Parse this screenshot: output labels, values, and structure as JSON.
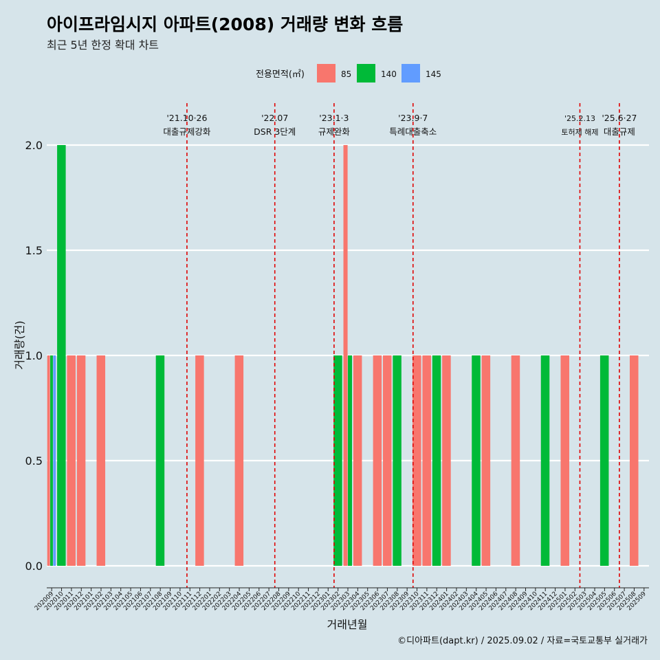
{
  "chart_data": {
    "type": "bar",
    "title": "아이프라임시지 아파트(2008) 거래량 변화 흐름",
    "subtitle": "최근 5년 한정 확대 차트",
    "xlabel": "거래년월",
    "ylabel": "거래량(건)",
    "caption": "©디아파트(dapt.kr) / 2025.09.02 / 자료=국토교통부 실거래가",
    "legend_title": "전용면적(㎡)",
    "ylim": [
      0,
      2
    ],
    "y_ticks": [
      "0.0",
      "0.5",
      "1.0",
      "1.5",
      "2.0"
    ],
    "categories": [
      "202009",
      "202010",
      "202011",
      "202012",
      "202101",
      "202102",
      "202103",
      "202104",
      "202105",
      "202106",
      "202107",
      "202108",
      "202109",
      "202110",
      "202111",
      "202112",
      "202201",
      "202202",
      "202203",
      "202204",
      "202205",
      "202206",
      "202207",
      "202208",
      "202209",
      "202210",
      "202211",
      "202212",
      "202301",
      "202302",
      "202303",
      "202304",
      "202305",
      "202306",
      "202307",
      "202308",
      "202309",
      "202310",
      "202311",
      "202312",
      "202401",
      "202402",
      "202403",
      "202404",
      "202405",
      "202406",
      "202407",
      "202408",
      "202409",
      "202410",
      "202411",
      "202412",
      "202501",
      "202502",
      "202503",
      "202504",
      "202505",
      "202506",
      "202507",
      "202508",
      "202509"
    ],
    "series": [
      {
        "name": "85",
        "color": "#f8766d",
        "values": [
          1,
          0,
          1,
          1,
          0,
          1,
          0,
          0,
          0,
          0,
          0,
          0,
          0,
          0,
          0,
          1,
          0,
          0,
          0,
          1,
          0,
          0,
          0,
          0,
          0,
          0,
          0,
          0,
          0,
          0,
          2,
          1,
          0,
          1,
          1,
          0,
          0,
          1,
          1,
          0,
          1,
          0,
          0,
          0,
          1,
          0,
          0,
          1,
          0,
          0,
          0,
          0,
          1,
          0,
          0,
          0,
          0,
          0,
          0,
          1,
          0
        ]
      },
      {
        "name": "140",
        "color": "#00ba38",
        "values": [
          1,
          2,
          0,
          0,
          0,
          0,
          0,
          0,
          0,
          0,
          0,
          1,
          0,
          0,
          0,
          0,
          0,
          0,
          0,
          0,
          0,
          0,
          0,
          0,
          0,
          0,
          0,
          0,
          0,
          1,
          1,
          0,
          0,
          0,
          0,
          1,
          0,
          0,
          0,
          1,
          0,
          0,
          0,
          1,
          0,
          0,
          0,
          0,
          0,
          0,
          1,
          0,
          0,
          0,
          0,
          0,
          1,
          0,
          0,
          0,
          0
        ]
      },
      {
        "name": "145",
        "color": "#619cff",
        "values": [
          1,
          0,
          0,
          0,
          0,
          0,
          0,
          0,
          0,
          0,
          0,
          0,
          0,
          0,
          0,
          0,
          0,
          0,
          0,
          0,
          0,
          0,
          0,
          0,
          0,
          0,
          0,
          0,
          0,
          0,
          0,
          0,
          0,
          0,
          0,
          0,
          0,
          0,
          0,
          0,
          0,
          0,
          0,
          0,
          0,
          0,
          0,
          0,
          0,
          0,
          0,
          0,
          0,
          0,
          0,
          0,
          0,
          0,
          0,
          0,
          0
        ]
      }
    ],
    "events": [
      {
        "date": "'21.10·26",
        "label": "대출규제강화",
        "position": 13.7
      },
      {
        "date": "'22.07",
        "label": "DSR 3단계",
        "position": 22.6
      },
      {
        "date": "'23.1·3",
        "label": "규제완화",
        "position": 28.6
      },
      {
        "date": "'23.9·7",
        "label": "특례대출축소",
        "position": 36.6
      },
      {
        "date": "'25.2.13",
        "label": "토허제 해제",
        "position": 53.5
      },
      {
        "date": "'25.6·27",
        "label": "대출규제",
        "position": 57.5
      }
    ]
  }
}
